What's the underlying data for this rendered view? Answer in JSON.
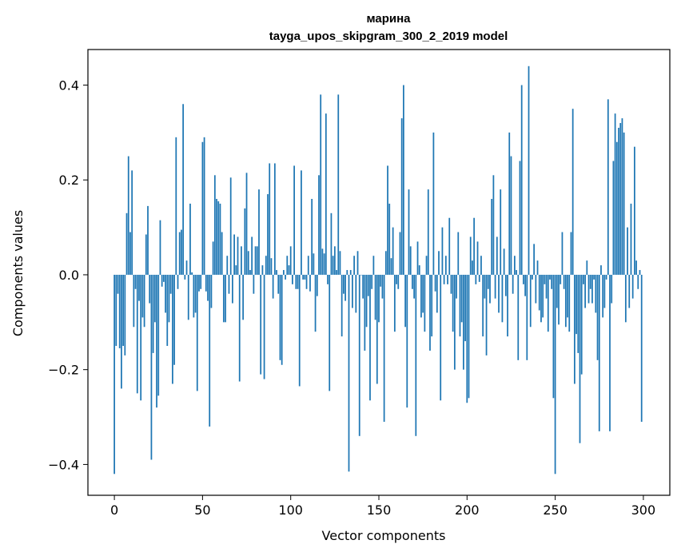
{
  "chart_data": {
    "type": "bar",
    "title_line1": "марина",
    "title_line2": "tayga_upos_skipgram_300_2_2019 model",
    "xlabel": "Vector components",
    "ylabel": "Components values",
    "xlim": [
      -15,
      315
    ],
    "ylim": [
      -0.465,
      0.475
    ],
    "xticks": [
      0,
      50,
      100,
      150,
      200,
      250,
      300
    ],
    "xtick_labels": [
      "0",
      "50",
      "100",
      "150",
      "200",
      "250",
      "300"
    ],
    "yticks": [
      -0.4,
      -0.2,
      0.0,
      0.2,
      0.4
    ],
    "ytick_labels": [
      "−0.4",
      "−0.2",
      "0.0",
      "0.2",
      "0.4"
    ],
    "bar_color": "#1f77b4",
    "values": [
      -0.42,
      -0.15,
      -0.04,
      -0.155,
      -0.24,
      -0.15,
      -0.17,
      0.13,
      0.25,
      0.09,
      0.22,
      -0.11,
      -0.03,
      -0.25,
      -0.055,
      -0.265,
      -0.09,
      -0.11,
      0.085,
      0.145,
      -0.06,
      -0.39,
      -0.165,
      -0.1,
      -0.28,
      -0.255,
      0.115,
      -0.025,
      -0.015,
      -0.08,
      -0.15,
      -0.1,
      -0.04,
      -0.23,
      -0.19,
      0.29,
      -0.03,
      0.09,
      0.095,
      0.36,
      -0.01,
      0.03,
      -0.095,
      0.15,
      0.005,
      -0.09,
      -0.08,
      -0.245,
      -0.035,
      -0.03,
      0.28,
      0.29,
      -0.035,
      -0.055,
      -0.32,
      -0.07,
      0.07,
      0.21,
      0.16,
      0.155,
      0.15,
      0.09,
      -0.1,
      -0.1,
      0.04,
      -0.04,
      0.205,
      -0.06,
      0.085,
      0.02,
      0.08,
      -0.225,
      0.06,
      -0.095,
      0.14,
      0.215,
      0.05,
      0.01,
      0.08,
      -0.04,
      0.06,
      0.06,
      0.18,
      -0.21,
      0.02,
      -0.22,
      0.04,
      0.17,
      0.235,
      0.035,
      -0.05,
      0.235,
      0.01,
      -0.04,
      -0.18,
      -0.19,
      0.01,
      -0.01,
      0.04,
      0.02,
      0.06,
      -0.02,
      0.23,
      -0.03,
      -0.03,
      -0.235,
      0.22,
      -0.01,
      -0.01,
      -0.03,
      0.04,
      -0.035,
      0.16,
      0.045,
      -0.12,
      -0.045,
      0.21,
      0.38,
      0.055,
      0.045,
      0.34,
      -0.02,
      -0.245,
      0.13,
      0.04,
      0.06,
      0.01,
      0.38,
      0.05,
      -0.13,
      -0.04,
      -0.055,
      0.01,
      -0.415,
      0.01,
      -0.07,
      0.04,
      -0.08,
      0.05,
      -0.34,
      0.0,
      -0.05,
      -0.16,
      -0.11,
      -0.045,
      -0.265,
      -0.03,
      0.04,
      -0.095,
      -0.23,
      -0.1,
      -0.025,
      -0.05,
      -0.31,
      0.05,
      0.23,
      0.15,
      0.035,
      0.1,
      -0.12,
      -0.02,
      -0.03,
      0.09,
      0.33,
      0.4,
      -0.11,
      -0.28,
      0.18,
      0.06,
      -0.03,
      -0.05,
      -0.34,
      0.07,
      0.02,
      -0.09,
      -0.08,
      -0.12,
      0.04,
      0.18,
      -0.16,
      -0.13,
      0.3,
      -0.035,
      -0.08,
      0.05,
      -0.265,
      0.1,
      -0.02,
      0.04,
      -0.02,
      0.12,
      -0.04,
      -0.12,
      -0.2,
      -0.05,
      0.09,
      -0.13,
      -0.1,
      -0.2,
      -0.14,
      -0.27,
      -0.26,
      0.08,
      0.03,
      0.12,
      -0.02,
      0.07,
      -0.015,
      0.04,
      -0.13,
      -0.05,
      -0.17,
      -0.03,
      -0.06,
      0.16,
      0.21,
      -0.05,
      0.08,
      -0.08,
      0.18,
      -0.1,
      0.055,
      -0.045,
      -0.13,
      0.3,
      0.25,
      -0.04,
      0.04,
      0.01,
      -0.18,
      0.24,
      0.4,
      -0.02,
      -0.045,
      -0.18,
      0.44,
      -0.11,
      -0.01,
      0.065,
      -0.06,
      0.03,
      -0.075,
      -0.1,
      -0.09,
      -0.02,
      -0.05,
      -0.12,
      -0.01,
      -0.03,
      -0.26,
      -0.42,
      -0.07,
      -0.105,
      -0.02,
      0.09,
      -0.03,
      -0.11,
      -0.09,
      -0.12,
      0.09,
      0.35,
      -0.23,
      -0.125,
      -0.165,
      -0.355,
      -0.21,
      -0.02,
      -0.07,
      0.03,
      -0.06,
      -0.03,
      -0.06,
      -0.01,
      -0.08,
      -0.18,
      -0.33,
      0.02,
      -0.09,
      -0.07,
      -0.01,
      0.37,
      -0.33,
      -0.06,
      0.24,
      0.34,
      0.28,
      0.31,
      0.32,
      0.33,
      0.3,
      -0.1,
      0.1,
      -0.07,
      0.15,
      -0.05,
      0.27,
      0.03,
      -0.03,
      0.01,
      -0.31
    ]
  }
}
